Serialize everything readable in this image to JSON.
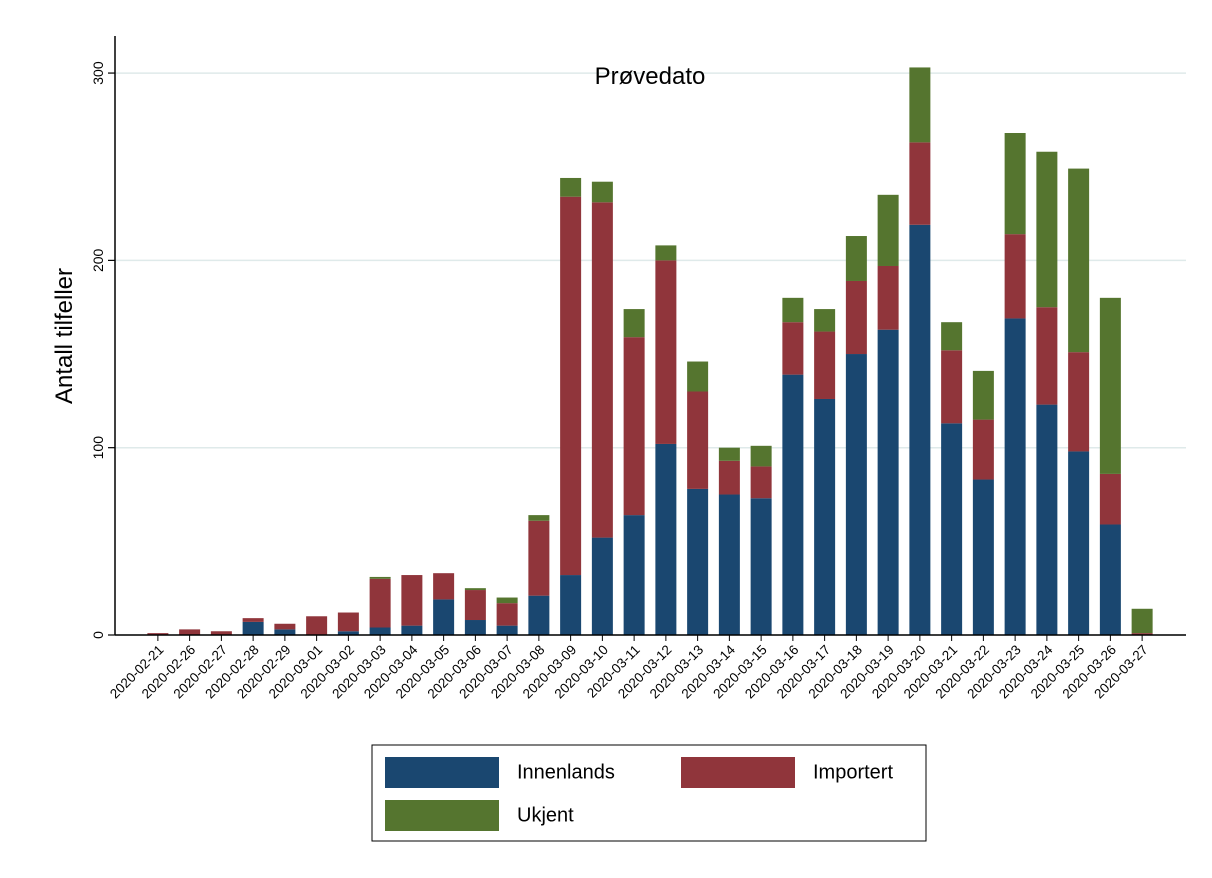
{
  "chart_data": {
    "type": "stacked_bar",
    "title": "Prøvedato",
    "y_label": "Antall tilfeller",
    "categories": [
      "2020-02-21",
      "2020-02-26",
      "2020-02-27",
      "2020-02-28",
      "2020-02-29",
      "2020-03-01",
      "2020-03-02",
      "2020-03-03",
      "2020-03-04",
      "2020-03-05",
      "2020-03-06",
      "2020-03-07",
      "2020-03-08",
      "2020-03-09",
      "2020-03-10",
      "2020-03-11",
      "2020-03-12",
      "2020-03-13",
      "2020-03-14",
      "2020-03-15",
      "2020-03-16",
      "2020-03-17",
      "2020-03-18",
      "2020-03-19",
      "2020-03-20",
      "2020-03-21",
      "2020-03-22",
      "2020-03-23",
      "2020-03-24",
      "2020-03-25",
      "2020-03-26",
      "2020-03-27"
    ],
    "series": [
      {
        "name": "Innenlands",
        "color": "#1a4770",
        "values": [
          0,
          0,
          0,
          7,
          3,
          0,
          2,
          4,
          5,
          19,
          8,
          5,
          21,
          32,
          52,
          64,
          102,
          78,
          75,
          73,
          139,
          126,
          150,
          163,
          219,
          113,
          83,
          169,
          123,
          98,
          59,
          0
        ]
      },
      {
        "name": "Importert",
        "color": "#90353b",
        "values": [
          1,
          3,
          2,
          2,
          3,
          10,
          10,
          26,
          27,
          14,
          16,
          12,
          40,
          202,
          179,
          95,
          98,
          52,
          18,
          17,
          28,
          36,
          39,
          34,
          44,
          39,
          32,
          45,
          52,
          53,
          27,
          1
        ]
      },
      {
        "name": "Ukjent",
        "color": "#55752f",
        "values": [
          0,
          0,
          0,
          0,
          0,
          0,
          0,
          1,
          0,
          0,
          1,
          3,
          3,
          10,
          11,
          15,
          8,
          16,
          7,
          11,
          13,
          12,
          24,
          38,
          40,
          15,
          26,
          54,
          83,
          98,
          94,
          13
        ]
      }
    ],
    "ylim": [
      0,
      320
    ],
    "yticks": [
      0,
      100,
      200,
      300
    ],
    "grid": true,
    "legend": "bottom"
  }
}
